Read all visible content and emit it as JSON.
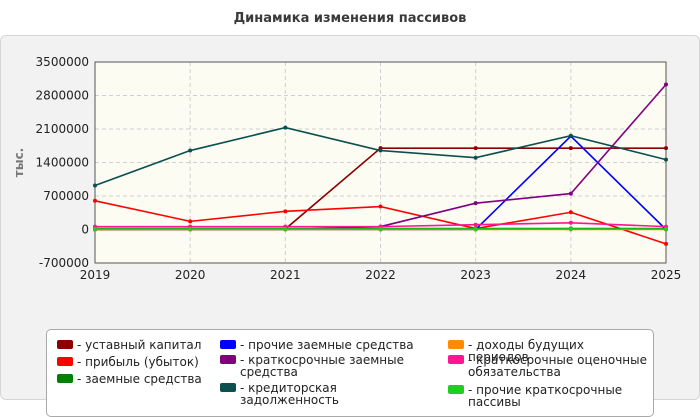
{
  "chart_data": {
    "type": "line",
    "title": "Динамика изменения пассивов",
    "ylabel": "тыс.",
    "xlabel": "",
    "x": [
      "2019",
      "2020",
      "2021",
      "2022",
      "2023",
      "2024",
      "2025"
    ],
    "ylim": [
      -700000,
      3500000
    ],
    "yticks": [
      -700000,
      0,
      700000,
      1400000,
      2100000,
      2800000,
      3500000
    ],
    "ytick_labels": [
      "-700000",
      "0",
      "700000",
      "1400000",
      "2100000",
      "2800000",
      "3500000"
    ],
    "grid": true,
    "legend_position": "bottom",
    "series": [
      {
        "name": "уставный капитал",
        "color": "#8b0000",
        "values": [
          0,
          10000,
          10000,
          1700000,
          1700000,
          1700000,
          1700000
        ]
      },
      {
        "name": "прибыль (убыток)",
        "color": "#ff0000",
        "values": [
          600000,
          170000,
          380000,
          480000,
          20000,
          360000,
          -300000
        ]
      },
      {
        "name": "заемные средства",
        "color": "#008000",
        "values": [
          20000,
          20000,
          20000,
          20000,
          20000,
          20000,
          20000
        ]
      },
      {
        "name": "прочие заемные средства",
        "color": "#0000ff",
        "values": [
          0,
          0,
          0,
          0,
          0,
          1950000,
          0
        ]
      },
      {
        "name": "краткосрочные заемные средства",
        "color": "#800080",
        "values": [
          0,
          0,
          0,
          60000,
          550000,
          750000,
          3030000
        ]
      },
      {
        "name": "кредиторская задолженность",
        "color": "#0b4f4f",
        "values": [
          920000,
          1650000,
          2130000,
          1650000,
          1500000,
          1960000,
          1460000
        ]
      },
      {
        "name": "доходы будущих периодов",
        "color": "#ff8c00",
        "values": [
          0,
          0,
          0,
          0,
          0,
          0,
          0
        ]
      },
      {
        "name": "краткосрочные оценочные обязательства",
        "color": "#ff1493",
        "values": [
          60000,
          60000,
          60000,
          60000,
          100000,
          140000,
          60000
        ]
      },
      {
        "name": "прочие краткосрочные пассивы",
        "color": "#22cc22",
        "values": [
          10000,
          10000,
          10000,
          10000,
          10000,
          10000,
          10000
        ]
      }
    ]
  }
}
